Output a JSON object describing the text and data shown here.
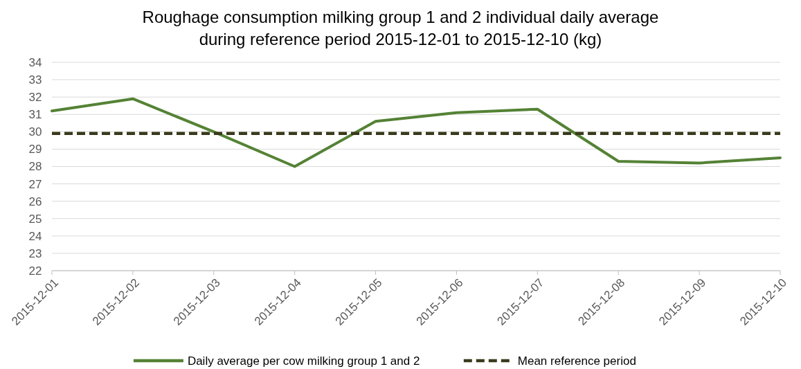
{
  "chart_data": {
    "type": "line",
    "title": "Roughage consumption milking group 1 and 2 individual daily average\nduring reference period 2015-12-01 to 2015-12-10 (kg)",
    "categories": [
      "2015-12-01",
      "2015-12-02",
      "2015-12-03",
      "2015-12-04",
      "2015-12-05",
      "2015-12-06",
      "2015-12-07",
      "2015-12-08",
      "2015-12-09",
      "2015-12-10"
    ],
    "series": [
      {
        "name": "Daily average per cow milking group 1 and 2",
        "color": "#548235",
        "line_style": "solid",
        "values": [
          31.2,
          31.9,
          30.0,
          28.0,
          30.6,
          31.1,
          31.3,
          28.3,
          28.2,
          28.5
        ]
      },
      {
        "name": "Mean reference period",
        "color": "#3a3a1c",
        "line_style": "dashed",
        "values": [
          29.9,
          29.9,
          29.9,
          29.9,
          29.9,
          29.9,
          29.9,
          29.9,
          29.9,
          29.9
        ]
      }
    ],
    "ylim": [
      22,
      34
    ],
    "yticks": [
      22,
      23,
      24,
      25,
      26,
      27,
      28,
      29,
      30,
      31,
      32,
      33,
      34
    ],
    "grid": "y",
    "legend": "bottom",
    "marker": "none"
  }
}
